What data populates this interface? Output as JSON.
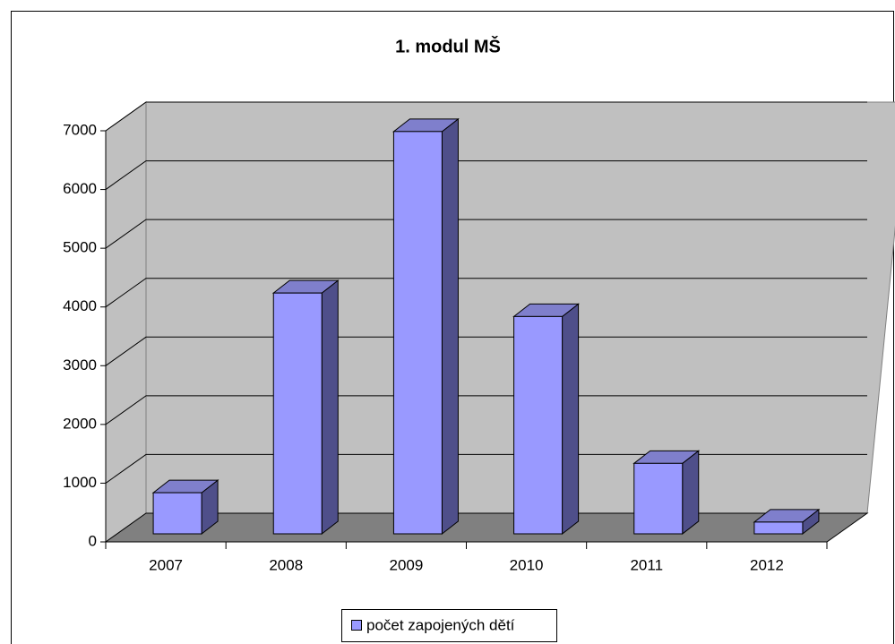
{
  "chart_data": {
    "type": "bar3d",
    "title": "1. modul MŠ",
    "categories": [
      "2007",
      "2008",
      "2009",
      "2010",
      "2011",
      "2012"
    ],
    "series": [
      {
        "name": "počet zapojených dětí",
        "color": "#9999ff",
        "values": [
          700,
          4100,
          6850,
          3700,
          1200,
          200
        ]
      }
    ],
    "ylim": [
      0,
      7000
    ],
    "yticks": [
      0,
      1000,
      2000,
      3000,
      4000,
      5000,
      6000,
      7000
    ],
    "grid": true,
    "legend": "bottom"
  }
}
